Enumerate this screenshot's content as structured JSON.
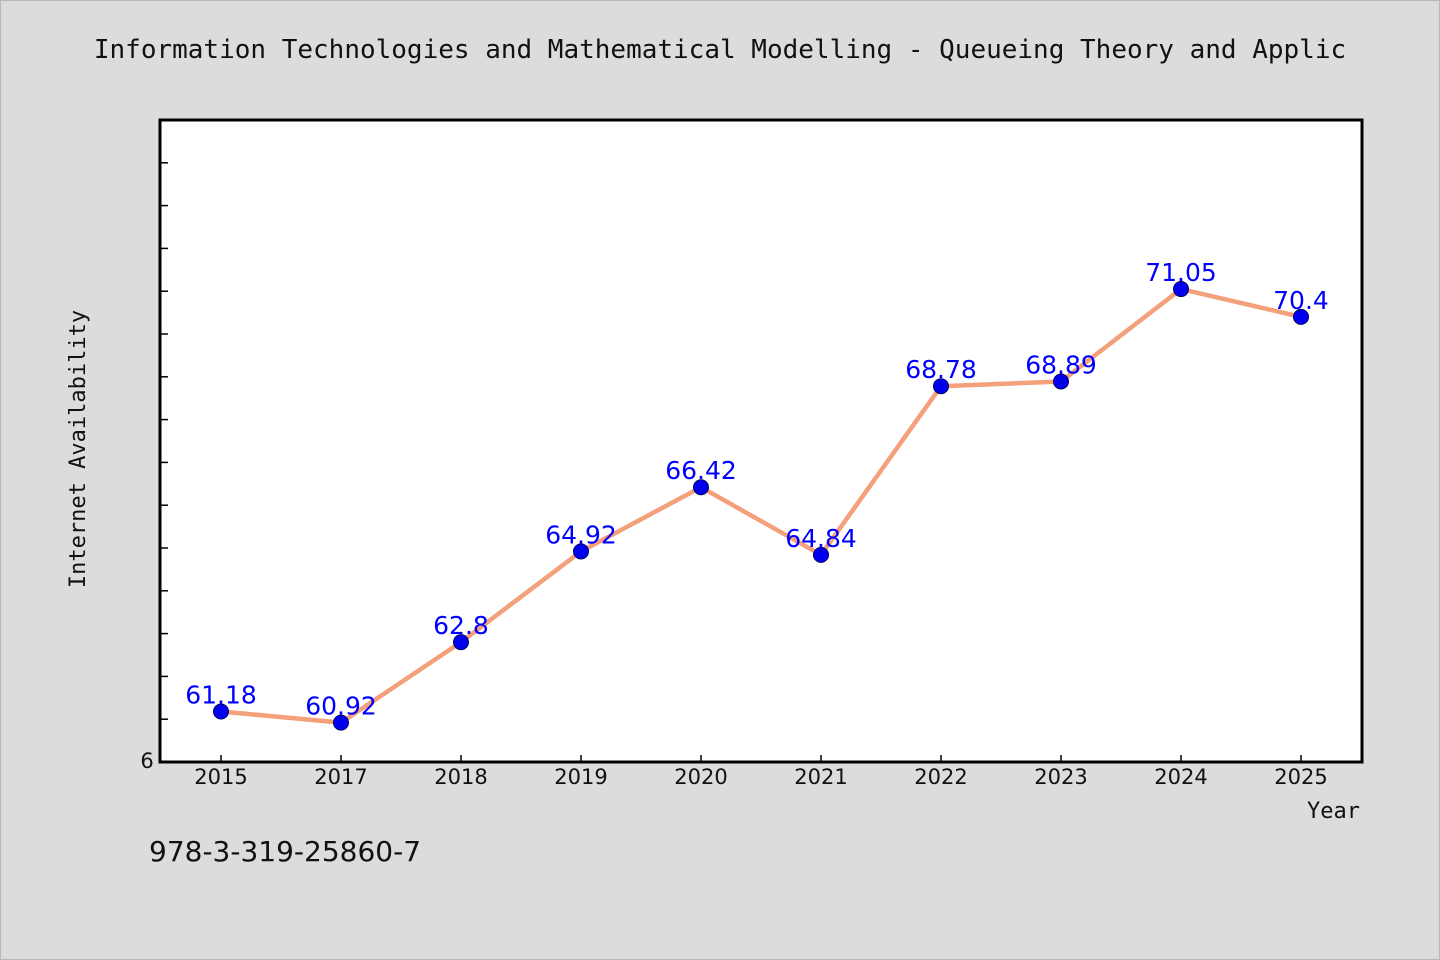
{
  "title": "Information Technologies and Mathematical Modelling - Queueing Theory and Applic",
  "footer_text": "978-3-319-25860-7",
  "colors": {
    "background": "#dcdcdc",
    "plot_background": "#ffffff",
    "line": "#f4a07a",
    "marker": "#0000ee",
    "data_label": "#0000ff",
    "axis": "#000000"
  },
  "chart_data": {
    "type": "line",
    "title": "Information Technologies and Mathematical Modelling - Queueing Theory and Applic",
    "xlabel": "Year",
    "ylabel": "Internet Availability",
    "categories": [
      "2015",
      "2017",
      "2018",
      "2019",
      "2020",
      "2021",
      "2022",
      "2023",
      "2024",
      "2025"
    ],
    "series": [
      {
        "values": [
          61.18,
          60.92,
          62.8,
          64.92,
          66.42,
          64.84,
          68.78,
          68.89,
          71.05,
          70.4
        ]
      }
    ],
    "data_labels": [
      "61.18",
      "60.92",
      "62.8",
      "64.92",
      "66.42",
      "64.84",
      "68.78",
      "68.89",
      "71.05",
      "70.4"
    ],
    "y_tick_labels": [
      "6"
    ],
    "ylim": [
      60,
      75
    ],
    "grid": false,
    "legend": "none"
  }
}
